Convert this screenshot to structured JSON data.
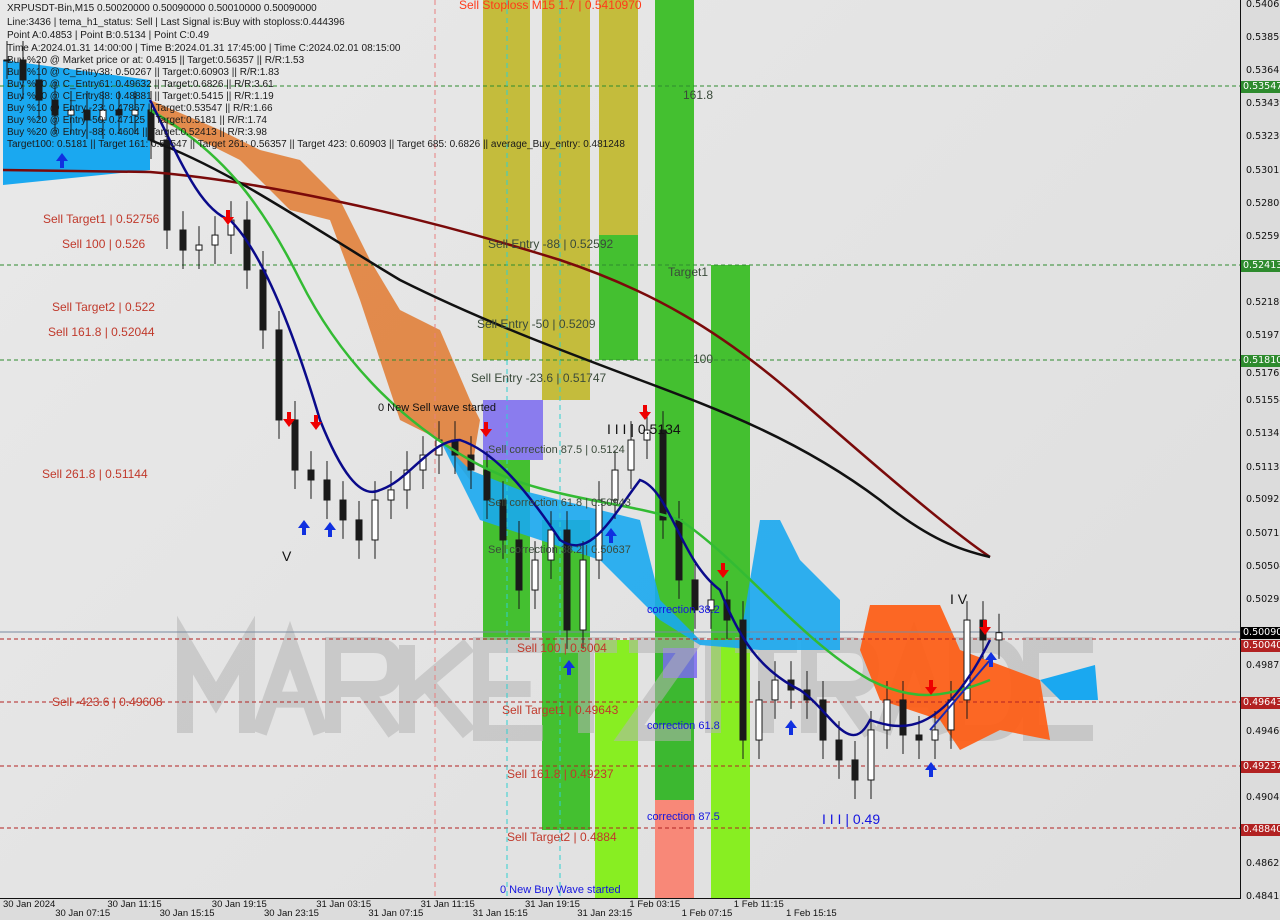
{
  "header": {
    "line1": "XRPUSDT-Bin,M15  0.50020000 0.50090000 0.50010000 0.50090000",
    "line2": "Line:3436 | tema_h1_status: Sell | Last Signal is:Buy with stoploss:0.444396",
    "line3": "Point A:0.4853 | Point B:0.5134 | Point C:0.49",
    "line4": "Time A:2024.01.31 14:00:00 | Time B:2024.01.31 17:45:00 | Time C:2024.02.01 08:15:00",
    "line5": "Buy %20 @ Market price or at: 0.4915 || Target:0.56357 || R/R:1.53",
    "line6": "Buy %10 @ C_Entry38: 0.50267 || Target:0.60903 || R/R:1.83",
    "line7": "Buy %10 @ C_Entry61: 0.49632 || Target:0.6826 || R/R:3.61",
    "line8": "Buy %10 @ C_Entry88: 0.48881 || Target:0.5415 || R/R:1.19",
    "line9": "Buy %10 @ Entry -23: 0.47867 || Target:0.53547 || R/R:1.66",
    "line10": "Buy %20 @ Entry -50: 0.47125 || Target:0.5181 || R/R:1.74",
    "line11": "Buy %20 @ Entry -88: 0.4604 || Target:0.52413 || R/R:3.98",
    "line12": "Target100: 0.5181 || Target 161: 0.53547 || Target 261: 0.56357 || Target 423: 0.60903 || Target 685: 0.6826 || average_Buy_entry: 0.481248"
  },
  "labels": {
    "sell_stoploss": "Sell Stoploss M15 1.7 | 0.5410970",
    "sell_target1_a": "Sell Target1 | 0.52756",
    "sell_100_a": "Sell 100 | 0.526",
    "sell_target2_a": "Sell Target2 | 0.522",
    "sell_161_a": "Sell 161.8 | 0.52044",
    "sell_261": "Sell  261.8 | 0.51144",
    "sell_423": "Sell -423.6 | 0.49608",
    "sell_entry_88": "Sell Entry -88 | 0.52592",
    "sell_entry_50": "Sell Entry -50 | 0.5209",
    "sell_entry_23": "Sell Entry -23.6 | 0.51747",
    "sell_corr_875": "Sell correction 87.5 | 0.5124",
    "sell_corr_618": "Sell correction 61.8 | 0.50943",
    "sell_corr_382": "Sell correction 38.2 | 0.50637",
    "sell_100_b": "Sell 100 | 0.5004",
    "sell_target1_b": "Sell Target1 | 0.49643",
    "sell_161_b": "Sell 161.8 | 0.49237",
    "sell_target2_b": "Sell Target2 | 0.4884",
    "fib_161": "161.8",
    "fib_target1": "Target1",
    "fib_100": "100",
    "point_b": "I I I | 0.5134",
    "point_c": "I I I | 0.49",
    "wave_sell": "0 New Sell wave started",
    "wave_buy": "0 New Buy Wave started",
    "wave_v": "V",
    "wave_iv": "I V",
    "corr_382": "correction 38.2",
    "corr_618": "correction 61.8",
    "corr_875": "correction 87.5",
    "watermark": "MARKETZITRADE"
  },
  "chart_data": {
    "type": "candlestick",
    "symbol": "XRPUSDT-Bin",
    "timeframe": "M15",
    "ylim": [
      0.48416,
      0.54065
    ],
    "y_ticks": [
      "0.54065",
      "0.53856",
      "0.53647",
      "0.53439",
      "0.53230",
      "0.53015",
      "0.52806",
      "0.52597",
      "0.52180",
      "0.51971",
      "0.51762",
      "0.51554",
      "0.51345",
      "0.51136",
      "0.50928",
      "0.50712",
      "0.50504",
      "0.50295",
      "0.49878",
      "0.49460",
      "0.49043",
      "0.48625",
      "0.48416"
    ],
    "x_ticks": [
      "30 Jan 2024",
      "30 Jan 07:15",
      "30 Jan 11:15",
      "30 Jan 15:15",
      "30 Jan 19:15",
      "30 Jan 23:15",
      "31 Jan 03:15",
      "31 Jan 07:15",
      "31 Jan 11:15",
      "31 Jan 15:15",
      "31 Jan 19:15",
      "31 Jan 23:15",
      "1 Feb 03:15",
      "1 Feb 07:15",
      "1 Feb 11:15",
      "1 Feb 15:15"
    ],
    "hourly_close": [
      0.53717,
      0.5359,
      0.53463,
      0.53368,
      0.534,
      0.53337,
      0.534,
      0.53368,
      0.534,
      0.5321,
      0.5264,
      0.52513,
      0.52545,
      0.52608,
      0.52703,
      0.52387,
      0.52007,
      0.51437,
      0.5112,
      0.51057,
      0.5093,
      0.50804,
      0.50677,
      0.5093,
      0.50994,
      0.5112,
      0.51215,
      0.5131,
      0.51215,
      0.5112,
      0.5093,
      0.50677,
      0.5036,
      0.5055,
      0.5074,
      0.50107,
      0.5055,
      0.5093,
      0.5112,
      0.5131,
      0.51373,
      0.50804,
      0.50424,
      0.50234,
      0.50297,
      0.5017,
      0.4941,
      0.49664,
      0.4979,
      0.49727,
      0.49664,
      0.4941,
      0.49284,
      0.49157,
      0.49474,
      0.49664,
      0.49442,
      0.4941,
      0.49474,
      0.49664,
      0.5017,
      0.50044,
      0.5009
    ],
    "current_price": "0.50090",
    "price_tags": [
      {
        "value": "0.53547",
        "color": "#2e8b2e"
      },
      {
        "value": "0.52413",
        "color": "#2e8b2e"
      },
      {
        "value": "0.51810",
        "color": "#2e8b2e"
      },
      {
        "value": "0.50040",
        "color": "#b22222"
      },
      {
        "value": "0.49643",
        "color": "#b22222"
      },
      {
        "value": "0.49237",
        "color": "#b22222"
      },
      {
        "value": "0.48840",
        "color": "#b22222"
      }
    ],
    "colors": {
      "bull": "#1a1a1a",
      "bear": "#1a1a1a",
      "ma_fast": "#0a0a8a",
      "ma_mid": "#33bb33",
      "ma_slow": "#111111",
      "ma_slowest": "#7a0a0a",
      "cloud_bear": "#ff5a10",
      "cloud_bull": "#1aa8f0",
      "zone_yellow": "#c4bc3c",
      "zone_green": "#44c030",
      "zone_lime": "#88ee22",
      "zone_salmon": "#f88878"
    }
  }
}
